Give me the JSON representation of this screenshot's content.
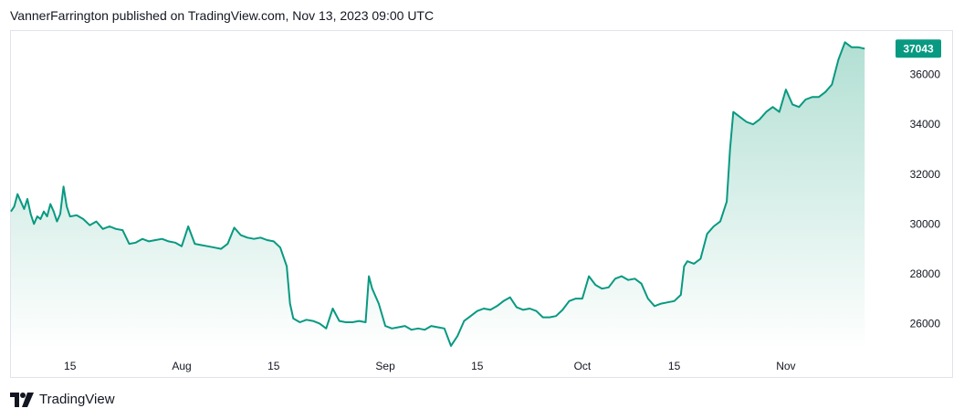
{
  "header": {
    "publisher_line": "VannerFarrington published on TradingView.com, Nov 13, 2023 09:00 UTC"
  },
  "footer": {
    "brand": "TradingView"
  },
  "colors": {
    "line": "#089981",
    "fill_top": "#b2dfd3",
    "fill_bottom": "#ffffff",
    "label_bg": "#089981",
    "border": "#e0e3eb"
  },
  "chart_data": {
    "type": "area",
    "last_value_label": "37043",
    "y_ticks": [
      26000,
      28000,
      30000,
      32000,
      34000,
      36000
    ],
    "ylim": [
      24950,
      37750
    ],
    "x_ticks": [
      {
        "label": "15",
        "date": "2023-07-15"
      },
      {
        "label": "Aug",
        "date": "2023-08-01"
      },
      {
        "label": "15",
        "date": "2023-08-15"
      },
      {
        "label": "Sep",
        "date": "2023-09-01"
      },
      {
        "label": "15",
        "date": "2023-09-15"
      },
      {
        "label": "Oct",
        "date": "2023-10-01"
      },
      {
        "label": "15",
        "date": "2023-10-15"
      },
      {
        "label": "Nov",
        "date": "2023-11-01"
      }
    ],
    "xlim": [
      "2023-07-06",
      "2023-11-17"
    ],
    "grid": false,
    "series": [
      {
        "values": [
          [
            "2023-07-06",
            30500
          ],
          [
            "2023-07-06 12:00",
            30700
          ],
          [
            "2023-07-07",
            31200
          ],
          [
            "2023-07-07 12:00",
            30900
          ],
          [
            "2023-07-08",
            30600
          ],
          [
            "2023-07-08 12:00",
            31000
          ],
          [
            "2023-07-09",
            30400
          ],
          [
            "2023-07-09 12:00",
            30000
          ],
          [
            "2023-07-10",
            30300
          ],
          [
            "2023-07-10 12:00",
            30200
          ],
          [
            "2023-07-11",
            30500
          ],
          [
            "2023-07-11 12:00",
            30300
          ],
          [
            "2023-07-12",
            30800
          ],
          [
            "2023-07-12 12:00",
            30500
          ],
          [
            "2023-07-13",
            30100
          ],
          [
            "2023-07-13 12:00",
            30400
          ],
          [
            "2023-07-14",
            31500
          ],
          [
            "2023-07-14 12:00",
            30700
          ],
          [
            "2023-07-15",
            30300
          ],
          [
            "2023-07-16",
            30350
          ],
          [
            "2023-07-17",
            30200
          ],
          [
            "2023-07-18",
            29950
          ],
          [
            "2023-07-19",
            30100
          ],
          [
            "2023-07-20",
            29800
          ],
          [
            "2023-07-21",
            29900
          ],
          [
            "2023-07-22",
            29800
          ],
          [
            "2023-07-23",
            29750
          ],
          [
            "2023-07-24",
            29200
          ],
          [
            "2023-07-25",
            29250
          ],
          [
            "2023-07-26",
            29400
          ],
          [
            "2023-07-27",
            29300
          ],
          [
            "2023-07-28",
            29350
          ],
          [
            "2023-07-29",
            29400
          ],
          [
            "2023-07-30",
            29300
          ],
          [
            "2023-07-31",
            29250
          ],
          [
            "2023-08-01",
            29100
          ],
          [
            "2023-08-02",
            29900
          ],
          [
            "2023-08-03",
            29200
          ],
          [
            "2023-08-04",
            29150
          ],
          [
            "2023-08-05",
            29100
          ],
          [
            "2023-08-06",
            29050
          ],
          [
            "2023-08-07",
            29000
          ],
          [
            "2023-08-08",
            29200
          ],
          [
            "2023-08-09",
            29850
          ],
          [
            "2023-08-10",
            29550
          ],
          [
            "2023-08-11",
            29450
          ],
          [
            "2023-08-12",
            29400
          ],
          [
            "2023-08-13",
            29450
          ],
          [
            "2023-08-14",
            29350
          ],
          [
            "2023-08-15",
            29300
          ],
          [
            "2023-08-16",
            29050
          ],
          [
            "2023-08-17",
            28300
          ],
          [
            "2023-08-17 12:00",
            26800
          ],
          [
            "2023-08-18",
            26200
          ],
          [
            "2023-08-19",
            26050
          ],
          [
            "2023-08-20",
            26150
          ],
          [
            "2023-08-21",
            26100
          ],
          [
            "2023-08-22",
            26000
          ],
          [
            "2023-08-23",
            25800
          ],
          [
            "2023-08-24",
            26600
          ],
          [
            "2023-08-25",
            26100
          ],
          [
            "2023-08-26",
            26050
          ],
          [
            "2023-08-27",
            26050
          ],
          [
            "2023-08-28",
            26100
          ],
          [
            "2023-08-29",
            26050
          ],
          [
            "2023-08-29 12:00",
            27900
          ],
          [
            "2023-08-30",
            27400
          ],
          [
            "2023-08-31",
            26800
          ],
          [
            "2023-09-01",
            25900
          ],
          [
            "2023-09-02",
            25800
          ],
          [
            "2023-09-03",
            25850
          ],
          [
            "2023-09-04",
            25900
          ],
          [
            "2023-09-05",
            25750
          ],
          [
            "2023-09-06",
            25800
          ],
          [
            "2023-09-07",
            25750
          ],
          [
            "2023-09-08",
            25900
          ],
          [
            "2023-09-09",
            25850
          ],
          [
            "2023-09-10",
            25800
          ],
          [
            "2023-09-11",
            25100
          ],
          [
            "2023-09-12",
            25500
          ],
          [
            "2023-09-13",
            26100
          ],
          [
            "2023-09-14",
            26300
          ],
          [
            "2023-09-15",
            26500
          ],
          [
            "2023-09-16",
            26600
          ],
          [
            "2023-09-17",
            26550
          ],
          [
            "2023-09-18",
            26700
          ],
          [
            "2023-09-19",
            26900
          ],
          [
            "2023-09-20",
            27050
          ],
          [
            "2023-09-21",
            26650
          ],
          [
            "2023-09-22",
            26550
          ],
          [
            "2023-09-23",
            26600
          ],
          [
            "2023-09-24",
            26500
          ],
          [
            "2023-09-25",
            26250
          ],
          [
            "2023-09-26",
            26250
          ],
          [
            "2023-09-27",
            26300
          ],
          [
            "2023-09-28",
            26550
          ],
          [
            "2023-09-29",
            26900
          ],
          [
            "2023-09-30",
            27000
          ],
          [
            "2023-10-01",
            27000
          ],
          [
            "2023-10-02",
            27900
          ],
          [
            "2023-10-03",
            27550
          ],
          [
            "2023-10-04",
            27400
          ],
          [
            "2023-10-05",
            27450
          ],
          [
            "2023-10-06",
            27800
          ],
          [
            "2023-10-07",
            27900
          ],
          [
            "2023-10-08",
            27750
          ],
          [
            "2023-10-09",
            27800
          ],
          [
            "2023-10-10",
            27600
          ],
          [
            "2023-10-11",
            27000
          ],
          [
            "2023-10-12",
            26700
          ],
          [
            "2023-10-13",
            26800
          ],
          [
            "2023-10-14",
            26850
          ],
          [
            "2023-10-15",
            26900
          ],
          [
            "2023-10-16",
            27150
          ],
          [
            "2023-10-16 12:00",
            28300
          ],
          [
            "2023-10-17",
            28500
          ],
          [
            "2023-10-18",
            28400
          ],
          [
            "2023-10-19",
            28600
          ],
          [
            "2023-10-20",
            29600
          ],
          [
            "2023-10-21",
            29900
          ],
          [
            "2023-10-22",
            30100
          ],
          [
            "2023-10-23",
            30900
          ],
          [
            "2023-10-23 12:00",
            33000
          ],
          [
            "2023-10-24",
            34500
          ],
          [
            "2023-10-25",
            34300
          ],
          [
            "2023-10-26",
            34100
          ],
          [
            "2023-10-27",
            34000
          ],
          [
            "2023-10-28",
            34200
          ],
          [
            "2023-10-29",
            34500
          ],
          [
            "2023-10-30",
            34700
          ],
          [
            "2023-10-31",
            34500
          ],
          [
            "2023-11-01",
            35400
          ],
          [
            "2023-11-02",
            34800
          ],
          [
            "2023-11-03",
            34700
          ],
          [
            "2023-11-04",
            35000
          ],
          [
            "2023-11-05",
            35100
          ],
          [
            "2023-11-06",
            35100
          ],
          [
            "2023-11-07",
            35300
          ],
          [
            "2023-11-08",
            35600
          ],
          [
            "2023-11-09",
            36600
          ],
          [
            "2023-11-10",
            37300
          ],
          [
            "2023-11-11",
            37100
          ],
          [
            "2023-11-12",
            37100
          ],
          [
            "2023-11-13",
            37043
          ]
        ]
      }
    ]
  }
}
